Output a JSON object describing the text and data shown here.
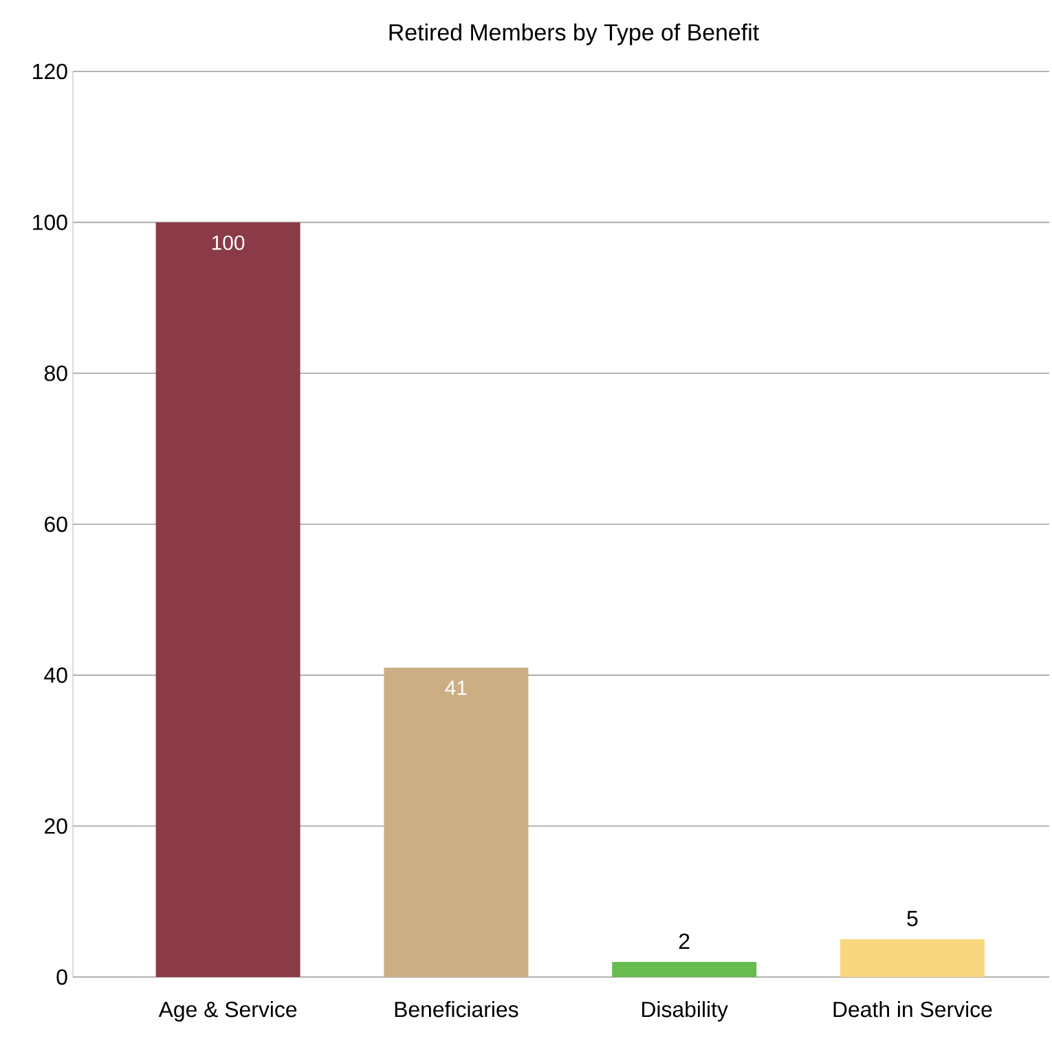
{
  "chart_data": {
    "type": "bar",
    "title": "Retired Members by Type of Benefit",
    "categories": [
      "Age & Service",
      "Beneficiaries",
      "Disability",
      "Death in Service"
    ],
    "values": [
      100,
      41,
      2,
      5
    ],
    "colors": [
      "#8b3a47",
      "#cbae84",
      "#67bb4f",
      "#f9d77f"
    ],
    "ylim": [
      0,
      120
    ],
    "yticks": [
      0,
      20,
      40,
      60,
      80,
      100,
      120
    ],
    "grid": "y",
    "data_labels": true
  }
}
